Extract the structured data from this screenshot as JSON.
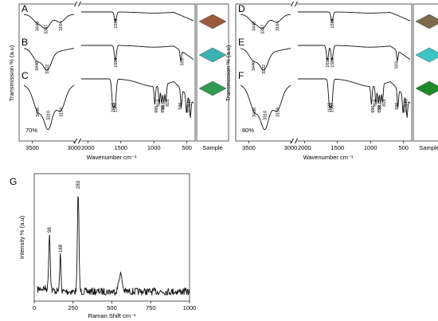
{
  "chart_data": [
    {
      "type": "line",
      "panels": [
        "A",
        "B",
        "C"
      ],
      "concentration": "70%",
      "ylabel": "Transmission % (a.u)",
      "xlabel": "Wavenumber cm⁻¹",
      "sample_label": "Sample",
      "x_ticks_left": [
        "3500",
        "3000"
      ],
      "x_ticks_right": [
        "2000",
        "1500",
        "1000",
        "500"
      ],
      "axis_break_left": [
        3000,
        3600
      ],
      "axis_break_right": [
        400,
        2100
      ],
      "series": [
        {
          "name": "A",
          "peaks": [
            3443,
            3337,
            3164,
            1583
          ],
          "peak_labels": [
            "3443",
            "3337",
            "3164",
            "1583"
          ],
          "sample_color": "#9b5a3a"
        },
        {
          "name": "B",
          "peaks": [
            3446,
            3322,
            1583,
            593
          ],
          "peak_labels": [
            "3446",
            "3322",
            "1583",
            "593"
          ],
          "sample_color": "#3bb0b0"
        },
        {
          "name": "C",
          "peaks": [
            3436,
            3310,
            3159,
            1622,
            1587,
            986,
            918,
            882,
            850,
            818,
            586,
            506,
            448
          ],
          "peak_labels": [
            "3436",
            "3310",
            "3159",
            "1622",
            "1587",
            "986",
            "918",
            "882",
            "850",
            "818",
            "586",
            "506",
            "448"
          ],
          "sample_color": "#2f9a50"
        }
      ]
    },
    {
      "type": "line",
      "panels": [
        "D",
        "E",
        "F"
      ],
      "concentration": "80%",
      "ylabel": "Transmission % (a.u)",
      "xlabel": "Wavenumber cm⁻¹",
      "sample_label": "Sample",
      "x_ticks_left": [
        "3500",
        "3000"
      ],
      "x_ticks_right": [
        "2000",
        "1500",
        "1000",
        "500"
      ],
      "axis_break_left": [
        3000,
        3600
      ],
      "axis_break_right": [
        400,
        2100
      ],
      "series": [
        {
          "name": "D",
          "peaks": [
            3443,
            3337,
            3164,
            1583
          ],
          "peak_labels": [
            "3443",
            "3337",
            "3164",
            "1583"
          ],
          "sample_color": "#7a6a4a"
        },
        {
          "name": "E",
          "peaks": [
            3446,
            3322,
            1652,
            1583,
            593
          ],
          "peak_labels": [
            "3446",
            "3322",
            "1652",
            "1583",
            "593"
          ],
          "sample_color": "#3cc4c4"
        },
        {
          "name": "F",
          "peaks": [
            3436,
            3310,
            3159,
            1622,
            1587,
            986,
            918,
            882,
            850,
            818,
            586,
            506,
            448
          ],
          "peak_labels": [
            "3436",
            "3310",
            "3159",
            "1622",
            "1587",
            "986",
            "918",
            "882",
            "850",
            "818",
            "586",
            "506",
            "448"
          ],
          "sample_color": "#1f8a2a"
        }
      ]
    },
    {
      "type": "line",
      "panel": "G",
      "ylabel": "Intensity % (a.u)",
      "xlabel": "Raman Shift cm⁻¹",
      "xlim": [
        0,
        1000
      ],
      "x_ticks": [
        "0",
        "250",
        "500",
        "750",
        "1000"
      ],
      "peaks": [
        98,
        168,
        283,
        555
      ],
      "peak_labels": [
        "98",
        "168",
        "283"
      ]
    }
  ]
}
